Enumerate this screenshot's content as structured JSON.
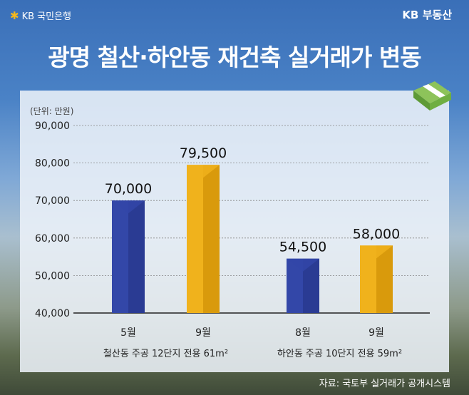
{
  "header": {
    "bank_logo": "KB 국민은행",
    "brand": "KB 부동산",
    "title": "광명 철산·하안동 재건축 실거래가 변동"
  },
  "footer": {
    "source": "자료: 국토부 실거래가 공개시스템"
  },
  "colors": {
    "blue": "#3347a8",
    "yellow": "#eeac17"
  },
  "chart_data": {
    "type": "bar",
    "title": "광명 철산·하안동 재건축 실거래가 변동",
    "unit_label": "(단위: 만원)",
    "ylim": [
      40000,
      90000
    ],
    "yticks": [
      40000,
      50000,
      60000,
      70000,
      80000,
      90000
    ],
    "ytick_labels": [
      "40,000",
      "50,000",
      "60,000",
      "70,000",
      "80,000",
      "90,000"
    ],
    "groups": [
      {
        "name": "철산동 주공 12단지 전용 61m²",
        "bars": [
          {
            "label": "5월",
            "value": 70000,
            "value_label": "70,000",
            "color": "blue"
          },
          {
            "label": "9월",
            "value": 79500,
            "value_label": "79,500",
            "color": "yellow"
          }
        ]
      },
      {
        "name": "하안동 주공 10단지 전용 59m²",
        "bars": [
          {
            "label": "8월",
            "value": 54500,
            "value_label": "54,500",
            "color": "blue"
          },
          {
            "label": "9월",
            "value": 58000,
            "value_label": "58,000",
            "color": "yellow"
          }
        ]
      }
    ]
  }
}
